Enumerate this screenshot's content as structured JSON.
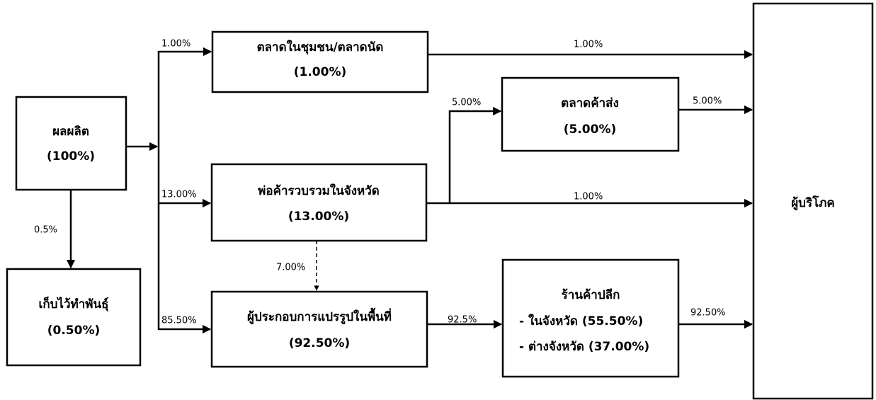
{
  "nodes": [
    {
      "lines": [
        "ผลผลิต",
        "(100%)"
      ]
    },
    {
      "lines": [
        "เก็บไว้ทำพันธุ์",
        "(0.50%)"
      ]
    },
    {
      "lines": [
        "ตลาดในชุมชน/ตลาดนัด",
        "(1.00%)"
      ]
    },
    {
      "lines": [
        "พ่อค้ารวบรวมในจังหวัด",
        "(13.00%)"
      ]
    },
    {
      "lines": [
        "ผู้ประกอบการแปรรูปในพื้นที่",
        "(92.50%)"
      ]
    },
    {
      "lines": [
        "ตลาดค้าส่ง",
        "(5.00%)"
      ]
    },
    {
      "lines": [
        "ร้านค้าปลีก",
        "- ในจังหวัด (55.50%)",
        "- ต่างจังหวัด (37.00%)"
      ]
    },
    {
      "lines": [
        "ผู้บริโภค"
      ]
    }
  ],
  "edges": [
    {
      "label": "0.5%"
    },
    {
      "label": "1.00%"
    },
    {
      "label": "13.00%"
    },
    {
      "label": "85.50%"
    },
    {
      "label": "1.00%"
    },
    {
      "label": "5.00%"
    },
    {
      "label": "1.00%"
    },
    {
      "label": "5.00%"
    },
    {
      "label": "7.00%"
    },
    {
      "label": "92.5%"
    },
    {
      "label": "92.50%"
    }
  ]
}
